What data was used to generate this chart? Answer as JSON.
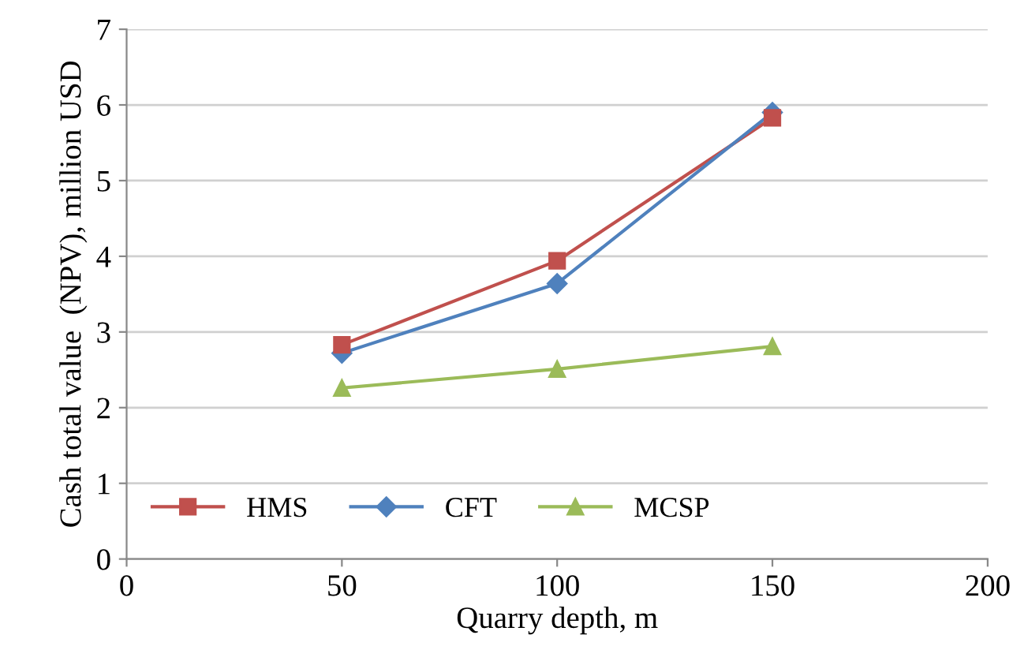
{
  "chart_data": {
    "type": "line",
    "xlabel": "Quarry depth, m",
    "ylabel": "Cash total value  (NPV), million USD",
    "x": [
      50,
      100,
      150
    ],
    "series": [
      {
        "name": "HMS",
        "color": "#c0504d",
        "marker": "square",
        "values": [
          2.83,
          3.94,
          5.83
        ]
      },
      {
        "name": "CFT",
        "color": "#4f81bd",
        "marker": "diamond",
        "values": [
          2.72,
          3.64,
          5.9
        ]
      },
      {
        "name": "MCSP",
        "color": "#9bbb59",
        "marker": "triangle",
        "values": [
          2.26,
          2.51,
          2.81
        ]
      }
    ],
    "xlim": [
      0,
      200
    ],
    "xticks": [
      0,
      50,
      100,
      150,
      200
    ],
    "ylim": [
      0,
      7
    ],
    "yticks": [
      0,
      1,
      2,
      3,
      4,
      5,
      6,
      7
    ],
    "grid": "y",
    "legend": "bottom left",
    "line_style": "solid"
  }
}
